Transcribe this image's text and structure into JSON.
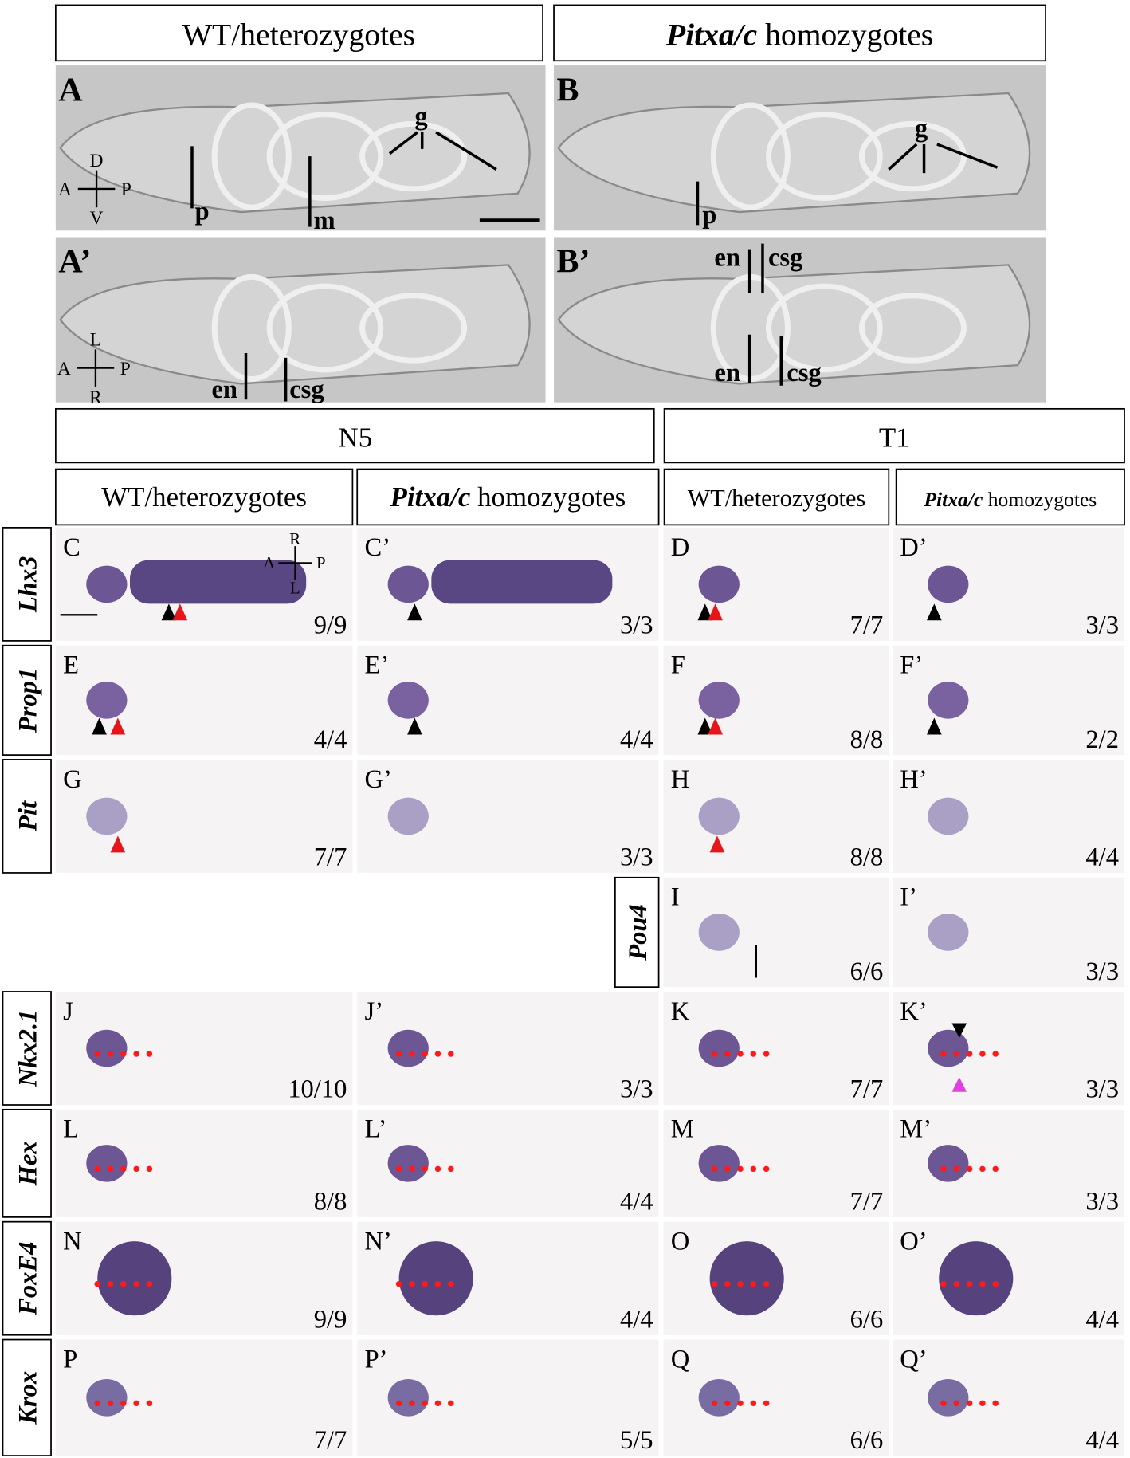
{
  "headers": {
    "top_left": "WT/heterozygotes",
    "top_right": {
      "italic": "Pitxa/c",
      "text": "homozygotes"
    },
    "n5": "N5",
    "t1": "T1",
    "sub": [
      {
        "text": "WT/heterozygotes"
      },
      {
        "italic": "Pitxa/c",
        "text": "homozygotes"
      },
      {
        "text": "WT/heterozygotes"
      },
      {
        "italic": "Pitxa/c",
        "text": "homozygotes"
      }
    ]
  },
  "top_panels": [
    {
      "label": "A",
      "annotations": [
        "p",
        "m",
        "g"
      ],
      "axes": [
        "D",
        "V",
        "A",
        "P"
      ]
    },
    {
      "label": "B",
      "annotations": [
        "p",
        "g"
      ]
    },
    {
      "label": "A’",
      "annotations": [
        "en",
        "csg"
      ],
      "axes": [
        "L",
        "R",
        "A",
        "P"
      ]
    },
    {
      "label": "B’",
      "annotations": [
        "en",
        "csg",
        "en",
        "csg"
      ]
    }
  ],
  "rows": [
    {
      "gene": "Lhx3",
      "panels": [
        {
          "label": "C",
          "count": "9/9",
          "axes": [
            "R",
            "L",
            "A",
            "P"
          ]
        },
        {
          "label": "C’",
          "count": "3/3"
        },
        {
          "label": "D",
          "count": "7/7"
        },
        {
          "label": "D’",
          "count": "3/3"
        }
      ]
    },
    {
      "gene": "Prop1",
      "panels": [
        {
          "label": "E",
          "count": "4/4"
        },
        {
          "label": "E’",
          "count": "4/4"
        },
        {
          "label": "F",
          "count": "8/8"
        },
        {
          "label": "F’",
          "count": "2/2"
        }
      ]
    },
    {
      "gene": "Pit",
      "panels": [
        {
          "label": "G",
          "count": "7/7"
        },
        {
          "label": "G’",
          "count": "3/3"
        },
        {
          "label": "H",
          "count": "8/8"
        },
        {
          "label": "H’",
          "count": "4/4"
        }
      ]
    },
    {
      "gene": "Pou4",
      "panels": [
        {
          "label": "I",
          "count": "6/6"
        },
        {
          "label": "I’",
          "count": "3/3"
        }
      ]
    },
    {
      "gene": "Nkx2.1",
      "panels": [
        {
          "label": "J",
          "count": "10/10"
        },
        {
          "label": "J’",
          "count": "3/3"
        },
        {
          "label": "K",
          "count": "7/7"
        },
        {
          "label": "K’",
          "count": "3/3"
        }
      ]
    },
    {
      "gene": "Hex",
      "panels": [
        {
          "label": "L",
          "count": "8/8"
        },
        {
          "label": "L’",
          "count": "4/4"
        },
        {
          "label": "M",
          "count": "7/7"
        },
        {
          "label": "M’",
          "count": "3/3"
        }
      ]
    },
    {
      "gene": "FoxE4",
      "panels": [
        {
          "label": "N",
          "count": "9/9"
        },
        {
          "label": "N’",
          "count": "4/4"
        },
        {
          "label": "O",
          "count": "6/6"
        },
        {
          "label": "O’",
          "count": "4/4"
        }
      ]
    },
    {
      "gene": "Krox",
      "panels": [
        {
          "label": "P",
          "count": "7/7"
        },
        {
          "label": "P’",
          "count": "5/5"
        },
        {
          "label": "Q",
          "count": "6/6"
        },
        {
          "label": "Q’",
          "count": "4/4"
        }
      ]
    }
  ]
}
